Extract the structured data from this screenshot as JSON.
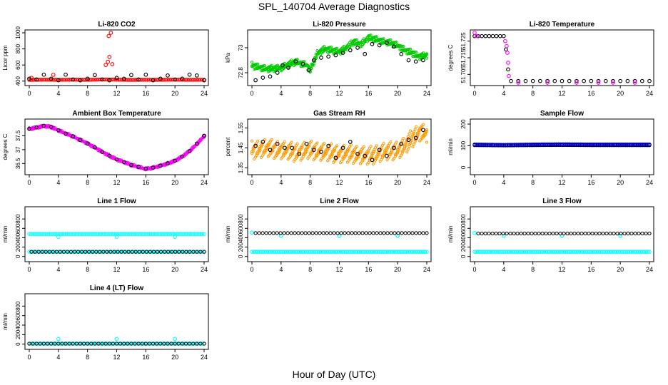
{
  "figure": {
    "title": "SPL_140704  Average Diagnostics",
    "xlabel": "Hour of Day (UTC)"
  },
  "chart_data": [
    {
      "type": "scatter",
      "title": "Li-820 CO2",
      "ylabel": "Licor ppm",
      "xlim": [
        0,
        24
      ],
      "xticks": [
        0,
        4,
        8,
        12,
        16,
        20,
        24
      ],
      "ylim": [
        380,
        1000
      ],
      "yticks": [
        400,
        600,
        800,
        1000
      ],
      "series": [
        {
          "color": "#ff0000",
          "style": "line-dense",
          "x": [
            0,
            2,
            4,
            6,
            8,
            10,
            12,
            14,
            16,
            18,
            20,
            22,
            24
          ],
          "y": [
            415,
            418,
            416,
            418,
            416,
            420,
            418,
            415,
            417,
            416,
            418,
            416,
            417
          ]
        },
        {
          "color": "#ff0000",
          "style": "points",
          "x": [
            0.3,
            3.3,
            10.5,
            10.8,
            11.0,
            11.2,
            11.4,
            10.9
          ],
          "y": [
            440,
            478,
            600,
            640,
            700,
            1000,
            610,
            960
          ]
        },
        {
          "color": "#000000",
          "style": "points",
          "x": [
            0,
            1,
            2,
            3,
            4,
            5,
            6,
            7,
            8,
            9,
            10,
            11,
            12,
            13,
            14,
            15,
            16,
            17,
            18,
            19,
            20,
            21,
            22,
            23,
            24
          ],
          "y": [
            430,
            420,
            480,
            430,
            410,
            480,
            420,
            410,
            430,
            475,
            420,
            410,
            440,
            430,
            475,
            420,
            480,
            410,
            430,
            470,
            420,
            430,
            480,
            470,
            410
          ]
        }
      ]
    },
    {
      "type": "scatter",
      "title": "Li-820 Pressure",
      "ylabel": "kPa",
      "xlim": [
        0,
        24
      ],
      "xticks": [
        0,
        4,
        8,
        12,
        16,
        20,
        24
      ],
      "ylim": [
        72.72,
        73.12
      ],
      "yticks": [
        72.8,
        73.0
      ],
      "series": [
        {
          "color": "#00cc00",
          "style": "band",
          "x": [
            0,
            2,
            4,
            6,
            7.5,
            8,
            9,
            10,
            12,
            13,
            14,
            15,
            16,
            17,
            18,
            19,
            20,
            21,
            22,
            23,
            24
          ],
          "y": [
            72.86,
            72.83,
            72.84,
            72.89,
            72.86,
            72.82,
            72.96,
            72.99,
            72.97,
            73.0,
            73.05,
            73.03,
            73.08,
            73.07,
            73.05,
            73.04,
            73.02,
            72.98,
            72.96,
            72.93,
            72.94
          ],
          "spread": 0.025
        },
        {
          "color": "#000000",
          "style": "points",
          "x": [
            0.5,
            1.5,
            2.5,
            3.5,
            4.2,
            5,
            6,
            7,
            7.8,
            8.5,
            9.5,
            10.5,
            11.5,
            12.5,
            13.5,
            14.5,
            15.5,
            16.5,
            17.5,
            18.5,
            19.5,
            20.5,
            21.5,
            22.5,
            23.5
          ],
          "y": [
            72.74,
            72.76,
            72.77,
            72.8,
            72.86,
            72.84,
            72.89,
            72.87,
            72.82,
            72.9,
            72.92,
            72.93,
            72.94,
            72.96,
            72.98,
            73.0,
            72.95,
            73.03,
            73.02,
            73.04,
            73.01,
            72.95,
            72.9,
            72.89,
            72.9
          ]
        }
      ]
    },
    {
      "type": "scatter",
      "title": "Li-820 Temperature",
      "ylabel": "degrees C",
      "xlim": [
        0,
        24
      ],
      "xticks": [
        0,
        4,
        8,
        12,
        16,
        20,
        24
      ],
      "ylim": [
        51.7,
        51.73
      ],
      "yticks": [
        51.705,
        51.715,
        51.725
      ],
      "series": [
        {
          "color": "#000000",
          "style": "points",
          "x": [
            0,
            0.5,
            1,
            1.5,
            2,
            2.5,
            3,
            3.5,
            4,
            4.3,
            4.6,
            5,
            6,
            7,
            8,
            9,
            10,
            11,
            12,
            13,
            14,
            15,
            16,
            17,
            18,
            19,
            20,
            21,
            22,
            23,
            24
          ],
          "y": [
            51.728,
            51.728,
            51.728,
            51.728,
            51.728,
            51.728,
            51.728,
            51.728,
            51.728,
            51.72,
            51.708,
            51.701,
            51.701,
            51.701,
            51.701,
            51.701,
            51.701,
            51.701,
            51.701,
            51.701,
            51.701,
            51.701,
            51.701,
            51.701,
            51.701,
            51.701,
            51.701,
            51.701,
            51.701,
            51.701,
            51.701
          ]
        },
        {
          "color": "#ff00ff",
          "style": "points",
          "x": [
            0,
            0.3,
            4.2,
            4.4,
            4.5,
            4.6,
            4.7,
            6,
            10,
            14,
            17,
            19,
            22
          ],
          "y": [
            51.73,
            51.728,
            51.725,
            51.722,
            51.718,
            51.712,
            51.704,
            51.7,
            51.7,
            51.7,
            51.7,
            51.7,
            51.7
          ]
        }
      ]
    },
    {
      "type": "scatter",
      "title": "Ambient Box Temperature",
      "ylabel": "degrees C",
      "xlim": [
        0,
        24
      ],
      "xticks": [
        0,
        4,
        8,
        12,
        16,
        20,
        24
      ],
      "ylim": [
        36.2,
        38.0
      ],
      "yticks": [
        36.5,
        37.0,
        37.5
      ],
      "series": [
        {
          "color": "#ff00ff",
          "style": "band",
          "x": [
            0,
            1,
            2,
            3,
            4,
            5,
            6,
            7,
            8,
            9,
            10,
            11,
            12,
            13,
            14,
            15,
            16,
            17,
            18,
            19,
            20,
            21,
            22,
            23,
            24
          ],
          "y": [
            37.75,
            37.8,
            37.85,
            37.82,
            37.7,
            37.58,
            37.48,
            37.35,
            37.22,
            37.08,
            36.92,
            36.78,
            36.65,
            36.55,
            36.45,
            36.38,
            36.3,
            36.35,
            36.42,
            36.5,
            36.6,
            36.75,
            36.95,
            37.2,
            37.48
          ],
          "spread": 0.04
        },
        {
          "color": "#000000",
          "style": "points",
          "x": [
            0,
            1,
            2,
            3,
            4,
            5,
            6,
            7,
            8,
            9,
            10,
            11,
            12,
            13,
            14,
            15,
            16,
            17,
            18,
            19,
            20,
            21,
            22,
            23,
            24
          ],
          "y": [
            37.75,
            37.8,
            37.86,
            37.82,
            37.7,
            37.58,
            37.48,
            37.35,
            37.22,
            37.08,
            36.92,
            36.78,
            36.65,
            36.55,
            36.45,
            36.38,
            36.32,
            36.35,
            36.42,
            36.5,
            36.6,
            36.75,
            36.95,
            37.22,
            37.5
          ]
        }
      ]
    },
    {
      "type": "scatter",
      "title": "Gas Stream RH",
      "ylabel": "percent",
      "xlim": [
        0,
        24
      ],
      "xticks": [
        0,
        4,
        8,
        12,
        16,
        20,
        24
      ],
      "ylim": [
        1.33,
        1.58
      ],
      "yticks": [
        1.35,
        1.45,
        1.55
      ],
      "series": [
        {
          "color": "#ff9900",
          "style": "band",
          "x": [
            0,
            2,
            4,
            6,
            8,
            10,
            12,
            14,
            16,
            18,
            20,
            21,
            22,
            23,
            24
          ],
          "y": [
            1.44,
            1.45,
            1.44,
            1.43,
            1.44,
            1.43,
            1.42,
            1.42,
            1.41,
            1.43,
            1.44,
            1.46,
            1.5,
            1.53,
            1.52
          ],
          "spread": 0.045
        },
        {
          "color": "#000000",
          "style": "points",
          "x": [
            0.5,
            1.5,
            2.5,
            3.5,
            4.5,
            5.5,
            6.5,
            7.5,
            8.5,
            9.5,
            10.5,
            11.5,
            12.5,
            13.5,
            14.5,
            15.5,
            16.5,
            17.5,
            18.5,
            19.5,
            20.5,
            21.5,
            22.5,
            23.5
          ],
          "y": [
            1.46,
            1.48,
            1.44,
            1.47,
            1.45,
            1.45,
            1.42,
            1.47,
            1.44,
            1.43,
            1.46,
            1.4,
            1.45,
            1.48,
            1.42,
            1.41,
            1.39,
            1.44,
            1.41,
            1.45,
            1.47,
            1.49,
            1.5,
            1.54
          ]
        }
      ]
    },
    {
      "type": "scatter",
      "title": "Sample Flow",
      "ylabel": "ml/min",
      "xlim": [
        0,
        24
      ],
      "xticks": [
        0,
        4,
        8,
        12,
        16,
        20,
        24
      ],
      "ylim": [
        -20,
        210
      ],
      "yticks": [
        0,
        100,
        200
      ],
      "series": [
        {
          "color": "#000000",
          "style": "line-dense",
          "x": [
            0,
            4,
            8,
            12,
            16,
            20,
            24
          ],
          "y": [
            103,
            102,
            103,
            104,
            103,
            103,
            103
          ]
        },
        {
          "color": "#0000cc",
          "style": "line-dense",
          "x": [
            0,
            4,
            8,
            12,
            16,
            20,
            24
          ],
          "y": [
            106,
            104,
            106,
            107,
            106,
            106,
            106
          ]
        }
      ]
    },
    {
      "type": "scatter",
      "title": "Line 1 Flow",
      "ylabel": "ml/min",
      "xlim": [
        0,
        24
      ],
      "xticks": [
        0,
        4,
        8,
        12,
        16,
        20,
        24
      ],
      "ylim": [
        -50,
        1000
      ],
      "yticks": [
        0,
        200,
        400,
        600,
        800
      ],
      "series": [
        {
          "color": "#00ffff",
          "style": "line-dense",
          "x": [
            0,
            24
          ],
          "y": [
            480,
            480
          ]
        },
        {
          "color": "#00ffff",
          "style": "points",
          "x": [
            4,
            12,
            20
          ],
          "y": [
            420,
            420,
            420
          ]
        },
        {
          "color": "#00ffff",
          "style": "line-dense",
          "x": [
            0,
            24
          ],
          "y": [
            100,
            100
          ]
        },
        {
          "color": "#000000",
          "style": "ring-row",
          "x": [
            0.3,
            24
          ],
          "y": [
            100,
            100
          ]
        }
      ]
    },
    {
      "type": "scatter",
      "title": "Line 2 Flow",
      "ylabel": "ml/min",
      "xlim": [
        0,
        24
      ],
      "xticks": [
        0,
        4,
        8,
        12,
        16,
        20,
        24
      ],
      "ylim": [
        -50,
        1000
      ],
      "yticks": [
        0,
        200,
        400,
        600,
        800
      ],
      "series": [
        {
          "color": "#00ffff",
          "style": "line-dense",
          "x": [
            0,
            24
          ],
          "y": [
            100,
            100
          ]
        },
        {
          "color": "#00ffff",
          "style": "points",
          "x": [
            0,
            4,
            12,
            20
          ],
          "y": [
            510,
            440,
            440,
            440
          ]
        },
        {
          "color": "#000000",
          "style": "ring-row",
          "x": [
            0.5,
            24
          ],
          "y": [
            500,
            500
          ]
        }
      ]
    },
    {
      "type": "scatter",
      "title": "Line 3 Flow",
      "ylabel": "ml/min",
      "xlim": [
        0,
        24
      ],
      "xticks": [
        0,
        4,
        8,
        12,
        16,
        20,
        24
      ],
      "ylim": [
        -50,
        1000
      ],
      "yticks": [
        0,
        200,
        400,
        600,
        800
      ],
      "series": [
        {
          "color": "#00ffff",
          "style": "line-dense",
          "x": [
            0,
            24
          ],
          "y": [
            100,
            100
          ]
        },
        {
          "color": "#00ffff",
          "style": "points",
          "x": [
            0,
            4,
            12,
            20
          ],
          "y": [
            500,
            440,
            440,
            440
          ]
        },
        {
          "color": "#000000",
          "style": "ring-row",
          "x": [
            0.5,
            24
          ],
          "y": [
            490,
            490
          ]
        }
      ]
    },
    {
      "type": "scatter",
      "title": "Line 4 (LT) Flow",
      "ylabel": "ml/min",
      "xlim": [
        0,
        24
      ],
      "xticks": [
        0,
        4,
        8,
        12,
        16,
        20,
        24
      ],
      "ylim": [
        -50,
        1000
      ],
      "yticks": [
        0,
        200,
        400,
        600,
        800
      ],
      "series": [
        {
          "color": "#00ffff",
          "style": "line-dense",
          "x": [
            0,
            24
          ],
          "y": [
            10,
            10
          ]
        },
        {
          "color": "#00ffff",
          "style": "points",
          "x": [
            4,
            12,
            20
          ],
          "y": [
            110,
            110,
            110
          ]
        },
        {
          "color": "#000000",
          "style": "ring-row",
          "x": [
            0,
            24
          ],
          "y": [
            10,
            10
          ]
        }
      ]
    }
  ]
}
